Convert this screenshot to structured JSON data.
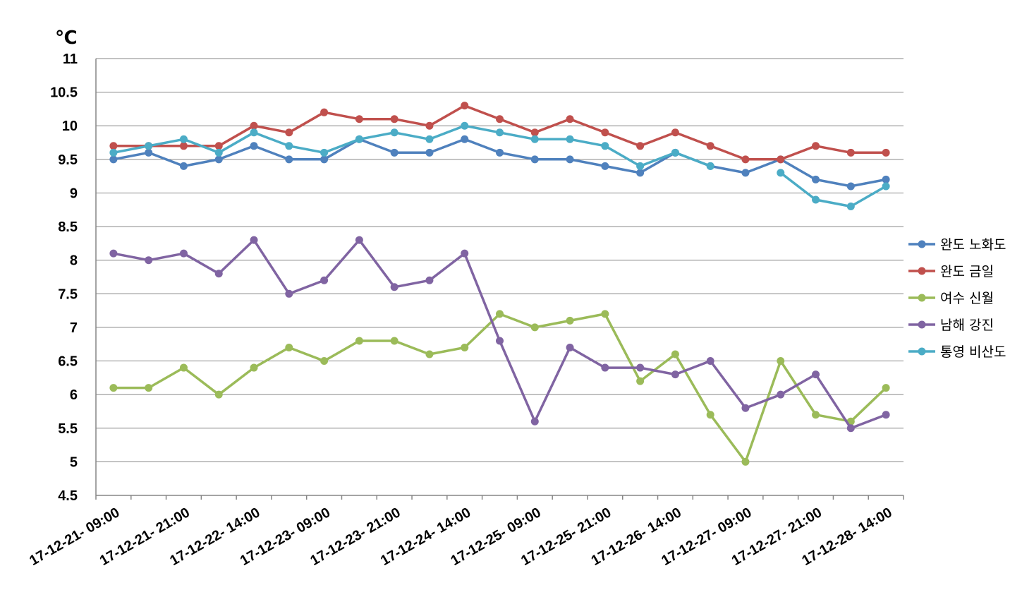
{
  "chart_data": {
    "type": "line",
    "title": "",
    "xlabel": "",
    "ylabel": "℃",
    "ylim": [
      4.5,
      11
    ],
    "yticks": [
      "4.5",
      "5",
      "5.5",
      "6",
      "6.5",
      "7",
      "7.5",
      "8",
      "8.5",
      "9",
      "9.5",
      "10",
      "10.5",
      "11"
    ],
    "x_tick_labels": [
      "17-12-21- 09:00",
      "17-12-21- 21:00",
      "17-12-22- 14:00",
      "17-12-23- 09:00",
      "17-12-23- 21:00",
      "17-12-24- 14:00",
      "17-12-25- 09:00",
      "17-12-25- 21:00",
      "17-12-26- 14:00",
      "17-12-27- 09:00",
      "17-12-27- 21:00",
      "17-12-28- 14:00"
    ],
    "grid": "horizontal",
    "legend_position": "right",
    "series": [
      {
        "name": "완도 노화도",
        "color": "#4F81BD",
        "values": [
          9.5,
          9.6,
          9.4,
          9.5,
          9.7,
          9.5,
          9.5,
          9.8,
          9.6,
          9.6,
          9.8,
          9.6,
          9.5,
          9.5,
          9.4,
          9.3,
          9.6,
          9.4,
          9.3,
          9.5,
          9.2,
          9.1,
          9.2
        ]
      },
      {
        "name": "완도 금일",
        "color": "#C0504D",
        "values": [
          9.7,
          9.7,
          9.7,
          9.7,
          10.0,
          9.9,
          10.2,
          10.1,
          10.1,
          10.0,
          10.3,
          10.1,
          9.9,
          10.1,
          9.9,
          9.7,
          9.9,
          9.7,
          9.5,
          9.5,
          9.7,
          9.6,
          9.6
        ]
      },
      {
        "name": "여수 신월",
        "color": "#9BBB59",
        "values": [
          6.1,
          6.1,
          6.4,
          6.0,
          6.4,
          6.7,
          6.5,
          6.8,
          6.8,
          6.6,
          6.7,
          7.2,
          7.0,
          7.1,
          7.2,
          6.2,
          6.6,
          5.7,
          5.0,
          6.5,
          5.7,
          5.6,
          6.1
        ]
      },
      {
        "name": "남해 강진",
        "color": "#8064A2",
        "values": [
          8.1,
          8.0,
          8.1,
          7.8,
          8.3,
          7.5,
          7.7,
          8.3,
          7.6,
          7.7,
          8.1,
          6.8,
          5.6,
          6.7,
          6.4,
          6.4,
          6.3,
          6.5,
          5.8,
          6.0,
          6.3,
          5.5,
          5.7
        ]
      },
      {
        "name": "통영 비산도",
        "color": "#4BACC6",
        "values": [
          9.6,
          9.7,
          9.8,
          9.6,
          9.9,
          9.7,
          9.6,
          9.8,
          9.9,
          9.8,
          10.0,
          9.9,
          9.8,
          9.8,
          9.7,
          9.4,
          9.6,
          9.4,
          null,
          9.3,
          8.9,
          8.8,
          9.1
        ]
      }
    ]
  }
}
